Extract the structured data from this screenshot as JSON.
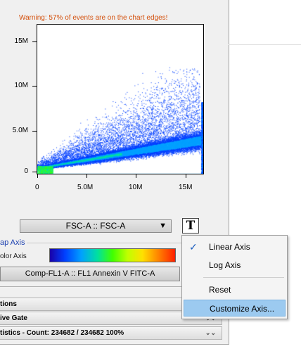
{
  "warning": "Warning: 57% of events are on the chart edges!",
  "chart_data": {
    "type": "scatter",
    "title": "",
    "xlabel": "",
    "ylabel": "",
    "xlim": [
      0,
      17000000
    ],
    "ylim": [
      0,
      17000000
    ],
    "x_ticks": [
      "0",
      "5.0M",
      "10M",
      "15M"
    ],
    "x_tick_values": [
      0,
      5000000,
      10000000,
      15000000
    ],
    "y_ticks": [
      "0",
      "5.0M",
      "10M",
      "15M"
    ],
    "y_tick_values": [
      0,
      5000000,
      10000000,
      15000000
    ],
    "density_colormap": [
      "#1a00a8",
      "#0040ff",
      "#00a0ff",
      "#00e0a0",
      "#40ff00",
      "#ffe000",
      "#ff2000"
    ]
  },
  "x_axis_select": {
    "label": "FSC-A :: FSC-A",
    "arrow": "▼"
  },
  "text_button": "T",
  "heatmap_axis": {
    "section_label": "ap Axis",
    "color_axis_label": "olor Axis",
    "parameter": "Comp-FL1-A :: FL1 Annexin V FITC-A"
  },
  "rows": [
    {
      "label": "tions",
      "chev": "⌄⌄"
    },
    {
      "label": "ive Gate",
      "chev": "⌄⌄"
    },
    {
      "label": "tistics  -  Count: 234682 / 234682        100%",
      "chev": "⌄⌄"
    }
  ],
  "menu": {
    "items": [
      {
        "label": "Linear Axis",
        "checked": "✓"
      },
      {
        "label": "Log Axis"
      },
      {
        "label": "Reset"
      },
      {
        "label": "Customize Axis..."
      }
    ]
  }
}
